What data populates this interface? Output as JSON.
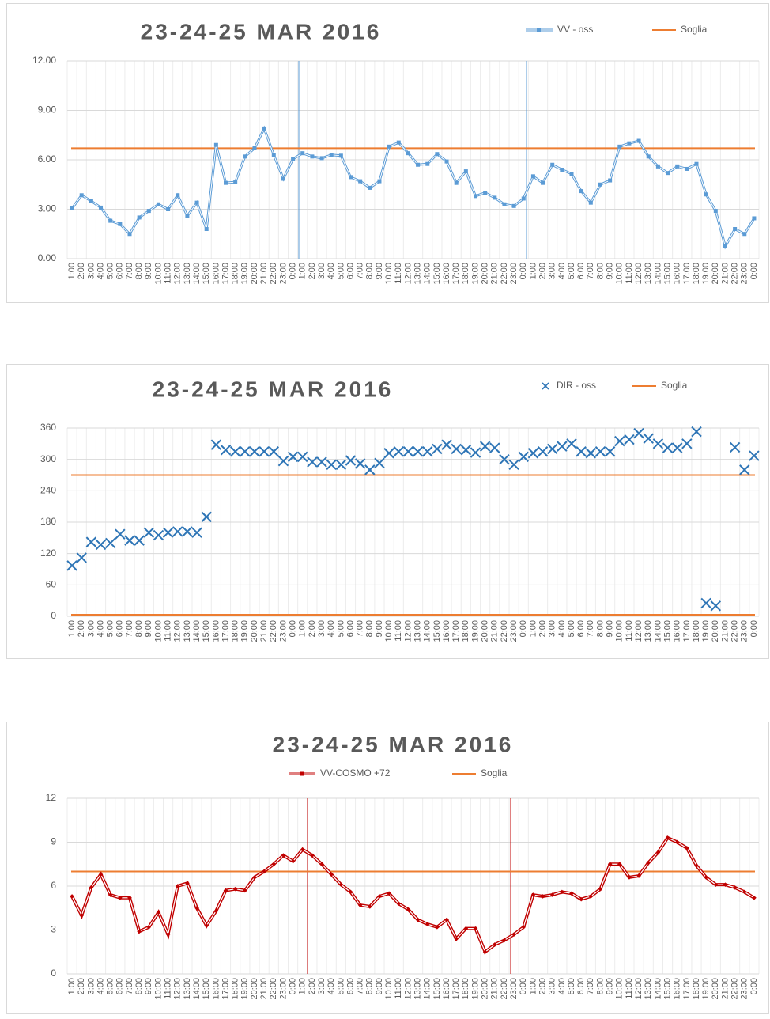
{
  "chart_data": [
    {
      "type": "line",
      "title": "23-24-25 MAR 2016",
      "categories": [
        "1:00",
        "2:00",
        "3:00",
        "4:00",
        "5:00",
        "6:00",
        "7:00",
        "8:00",
        "9:00",
        "10:00",
        "11:00",
        "12:00",
        "13:00",
        "14:00",
        "15:00",
        "16:00",
        "17:00",
        "18:00",
        "19:00",
        "20:00",
        "21:00",
        "22:00",
        "23:00",
        "0:00",
        "1:00",
        "2:00",
        "3:00",
        "4:00",
        "5:00",
        "6:00",
        "7:00",
        "8:00",
        "9:00",
        "10:00",
        "11:00",
        "12:00",
        "13:00",
        "14:00",
        "15:00",
        "16:00",
        "17:00",
        "18:00",
        "19:00",
        "20:00",
        "21:00",
        "22:00",
        "23:00",
        "0:00",
        "1:00",
        "2:00",
        "3:00",
        "4:00",
        "5:00",
        "6:00",
        "7:00",
        "8:00",
        "9:00",
        "10:00",
        "11:00",
        "12:00",
        "13:00",
        "14:00",
        "15:00",
        "16:00",
        "17:00",
        "18:00",
        "19:00",
        "20:00",
        "21:00",
        "22:00",
        "23:00",
        "0:00"
      ],
      "series": [
        {
          "name": "VV - oss",
          "color": "#5b9bd5",
          "values": [
            3.05,
            3.85,
            3.5,
            3.1,
            2.3,
            2.1,
            1.5,
            2.5,
            2.9,
            3.3,
            3.0,
            3.85,
            2.6,
            3.4,
            1.8,
            6.9,
            4.6,
            4.65,
            6.2,
            6.7,
            7.9,
            6.3,
            4.85,
            6.05,
            6.4,
            6.2,
            6.1,
            6.3,
            6.25,
            4.95,
            4.7,
            4.3,
            4.7,
            6.8,
            7.05,
            6.4,
            5.7,
            5.75,
            6.35,
            5.9,
            4.6,
            5.3,
            3.8,
            4.0,
            3.7,
            3.3,
            3.2,
            3.65,
            5.0,
            4.6,
            5.7,
            5.4,
            5.15,
            4.1,
            3.4,
            4.5,
            4.75,
            6.8,
            7.0,
            7.15,
            6.2,
            5.6,
            5.2,
            5.6,
            5.45,
            5.75,
            3.9,
            2.9,
            0.75,
            1.8,
            1.5,
            2.45
          ]
        }
      ],
      "soglia": {
        "name": "Soglia",
        "color": "#ed7d31",
        "values": [
          6.7
        ]
      },
      "ylim": [
        0,
        12
      ],
      "yticks": [
        {
          "value": 0,
          "label": "0.00"
        },
        {
          "value": 3,
          "label": "3.00"
        },
        {
          "value": 6,
          "label": "6.00"
        },
        {
          "value": 9,
          "label": "9.00"
        },
        {
          "value": 12,
          "label": "12.00"
        }
      ],
      "grid": true
    },
    {
      "type": "scatter",
      "title": "23-24-25 MAR 2016",
      "categories": [
        "1:00",
        "2:00",
        "3:00",
        "4:00",
        "5:00",
        "6:00",
        "7:00",
        "8:00",
        "9:00",
        "10:00",
        "11:00",
        "12:00",
        "13:00",
        "14:00",
        "15:00",
        "16:00",
        "17:00",
        "18:00",
        "19:00",
        "20:00",
        "21:00",
        "22:00",
        "23:00",
        "0:00",
        "1:00",
        "2:00",
        "3:00",
        "4:00",
        "5:00",
        "6:00",
        "7:00",
        "8:00",
        "9:00",
        "10:00",
        "11:00",
        "12:00",
        "13:00",
        "14:00",
        "15:00",
        "16:00",
        "17:00",
        "18:00",
        "19:00",
        "20:00",
        "21:00",
        "22:00",
        "23:00",
        "0:00",
        "1:00",
        "2:00",
        "3:00",
        "4:00",
        "5:00",
        "6:00",
        "7:00",
        "8:00",
        "9:00",
        "10:00",
        "11:00",
        "12:00",
        "13:00",
        "14:00",
        "15:00",
        "16:00",
        "17:00",
        "18:00",
        "19:00",
        "20:00",
        "21:00",
        "22:00",
        "23:00",
        "0:00"
      ],
      "series": [
        {
          "name": "DIR - oss",
          "color": "#2e75b6",
          "values": [
            97,
            112,
            142,
            137,
            140,
            157,
            145,
            145,
            160,
            155,
            160,
            162,
            162,
            160,
            190,
            328,
            318,
            315,
            315,
            315,
            315,
            315,
            297,
            305,
            305,
            295,
            295,
            290,
            290,
            298,
            292,
            280,
            293,
            312,
            315,
            315,
            315,
            315,
            320,
            328,
            320,
            318,
            313,
            325,
            322,
            300,
            290,
            305,
            312,
            315,
            320,
            325,
            330,
            315,
            312,
            315,
            315,
            335,
            338,
            350,
            340,
            330,
            322,
            322,
            330,
            353,
            25,
            20,
            null,
            323,
            280,
            307
          ]
        }
      ],
      "soglia": {
        "name": "Soglia",
        "color": "#ed7d31",
        "values": [
          270,
          3
        ]
      },
      "ylim": [
        0,
        360
      ],
      "yticks": [
        0,
        60,
        120,
        180,
        240,
        300,
        360
      ],
      "grid": true
    },
    {
      "type": "line",
      "title": "23-24-25 MAR 2016",
      "categories": [
        "1:00",
        "2:00",
        "3:00",
        "4:00",
        "5:00",
        "6:00",
        "7:00",
        "8:00",
        "9:00",
        "10:00",
        "11:00",
        "12:00",
        "13:00",
        "14:00",
        "15:00",
        "16:00",
        "17:00",
        "18:00",
        "19:00",
        "20:00",
        "21:00",
        "22:00",
        "23:00",
        "0:00",
        "1:00",
        "2:00",
        "3:00",
        "4:00",
        "5:00",
        "6:00",
        "7:00",
        "8:00",
        "9:00",
        "10:00",
        "11:00",
        "12:00",
        "13:00",
        "14:00",
        "15:00",
        "16:00",
        "17:00",
        "18:00",
        "19:00",
        "20:00",
        "21:00",
        "22:00",
        "23:00",
        "0:00",
        "1:00",
        "2:00",
        "3:00",
        "4:00",
        "5:00",
        "6:00",
        "7:00",
        "8:00",
        "9:00",
        "10:00",
        "11:00",
        "12:00",
        "13:00",
        "14:00",
        "15:00",
        "16:00",
        "17:00",
        "18:00",
        "19:00",
        "20:00",
        "21:00",
        "22:00",
        "23:00",
        "0:00"
      ],
      "series": [
        {
          "name": "VV-COSMO +72",
          "color": "#c00000",
          "values": [
            5.3,
            4.0,
            5.9,
            6.8,
            5.4,
            5.2,
            5.2,
            2.9,
            3.2,
            4.2,
            2.7,
            6.0,
            6.2,
            4.5,
            3.3,
            4.3,
            5.7,
            5.8,
            5.7,
            6.6,
            7.0,
            7.5,
            8.1,
            7.7,
            8.5,
            8.1,
            7.5,
            6.8,
            6.1,
            5.6,
            4.7,
            4.6,
            5.3,
            5.5,
            4.8,
            4.4,
            3.7,
            3.4,
            3.2,
            3.7,
            2.4,
            3.1,
            3.1,
            1.5,
            2.0,
            2.3,
            2.7,
            3.2,
            5.4,
            5.3,
            5.4,
            5.6,
            5.5,
            5.1,
            5.3,
            5.8,
            7.5,
            7.5,
            6.6,
            6.7,
            7.6,
            8.3,
            9.3,
            9.0,
            8.6,
            7.4,
            6.6,
            6.1,
            6.1,
            5.9,
            5.6,
            5.2
          ]
        }
      ],
      "soglia": {
        "name": "Soglia",
        "color": "#ed7d31",
        "values": [
          7
        ]
      },
      "ylim": [
        0,
        12
      ],
      "yticks": [
        0,
        3,
        6,
        9,
        12
      ],
      "grid": true
    }
  ]
}
